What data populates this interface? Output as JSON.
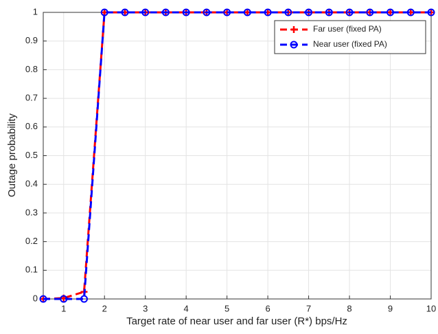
{
  "chart_data": {
    "type": "line",
    "xlabel": "Target rate of near user and far user (R*) bps/Hz",
    "ylabel": "Outage probability",
    "x": [
      0.5,
      1,
      1.5,
      2,
      2.5,
      3,
      3.5,
      4,
      4.5,
      5,
      5.5,
      6,
      6.5,
      7,
      7.5,
      8,
      8.5,
      9,
      9.5,
      10
    ],
    "series": [
      {
        "name": "Far user (fixed PA)",
        "color": "#ff0000",
        "marker": "+",
        "values": [
          0,
          0.003,
          0.025,
          1,
          1,
          1,
          1,
          1,
          1,
          1,
          1,
          1,
          1,
          1,
          1,
          1,
          1,
          1,
          1,
          1
        ]
      },
      {
        "name": "Near user (fixed PA)",
        "color": "#0000ff",
        "marker": "o",
        "values": [
          0,
          0,
          0,
          1,
          1,
          1,
          1,
          1,
          1,
          1,
          1,
          1,
          1,
          1,
          1,
          1,
          1,
          1,
          1,
          1
        ]
      }
    ],
    "xlim": [
      0.5,
      10
    ],
    "xticks": [
      1,
      2,
      3,
      4,
      5,
      6,
      7,
      8,
      9,
      10
    ],
    "ylim": [
      0,
      1
    ],
    "yticks": [
      0,
      0.1,
      0.2,
      0.3,
      0.4,
      0.5,
      0.6,
      0.7,
      0.8,
      0.9,
      1
    ],
    "grid": true,
    "legend": "upper right"
  }
}
